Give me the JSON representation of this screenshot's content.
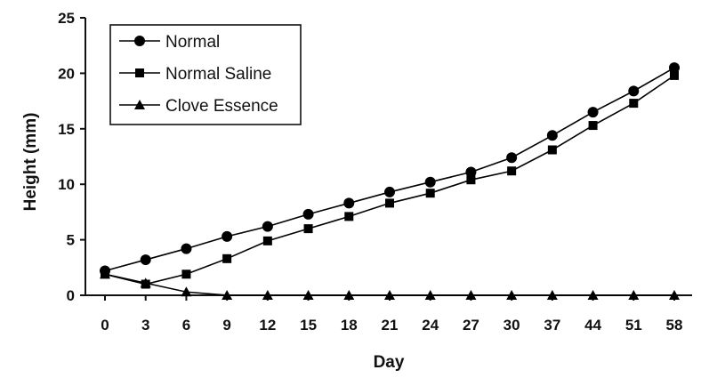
{
  "chart_data": {
    "type": "line",
    "categories": [
      "0",
      "3",
      "6",
      "9",
      "12",
      "15",
      "18",
      "21",
      "24",
      "27",
      "30",
      "37",
      "44",
      "51",
      "58"
    ],
    "xlabel": "Day",
    "ylabel": "Height (mm)",
    "ylim": [
      0,
      25
    ],
    "yticks": [
      "0",
      "5",
      "10",
      "15",
      "20",
      "25"
    ],
    "grid": false,
    "legend_position": "top-left",
    "series": [
      {
        "name": "Normal",
        "marker": "circle",
        "color": "#000000",
        "values": [
          2.2,
          3.2,
          4.2,
          5.3,
          6.2,
          7.3,
          8.3,
          9.3,
          10.2,
          11.1,
          12.4,
          14.4,
          16.5,
          18.4,
          20.5
        ]
      },
      {
        "name": "Normal Saline",
        "marker": "square",
        "color": "#000000",
        "values": [
          1.9,
          1.0,
          1.9,
          3.3,
          4.9,
          6.0,
          7.1,
          8.3,
          9.2,
          10.4,
          11.2,
          13.1,
          15.3,
          17.3,
          19.8
        ]
      },
      {
        "name": "Clove Essence",
        "marker": "triangle",
        "color": "#000000",
        "values": [
          1.9,
          1.1,
          0.3,
          0,
          0,
          0,
          0,
          0,
          0,
          0,
          0,
          0,
          0,
          0,
          0
        ]
      }
    ]
  }
}
